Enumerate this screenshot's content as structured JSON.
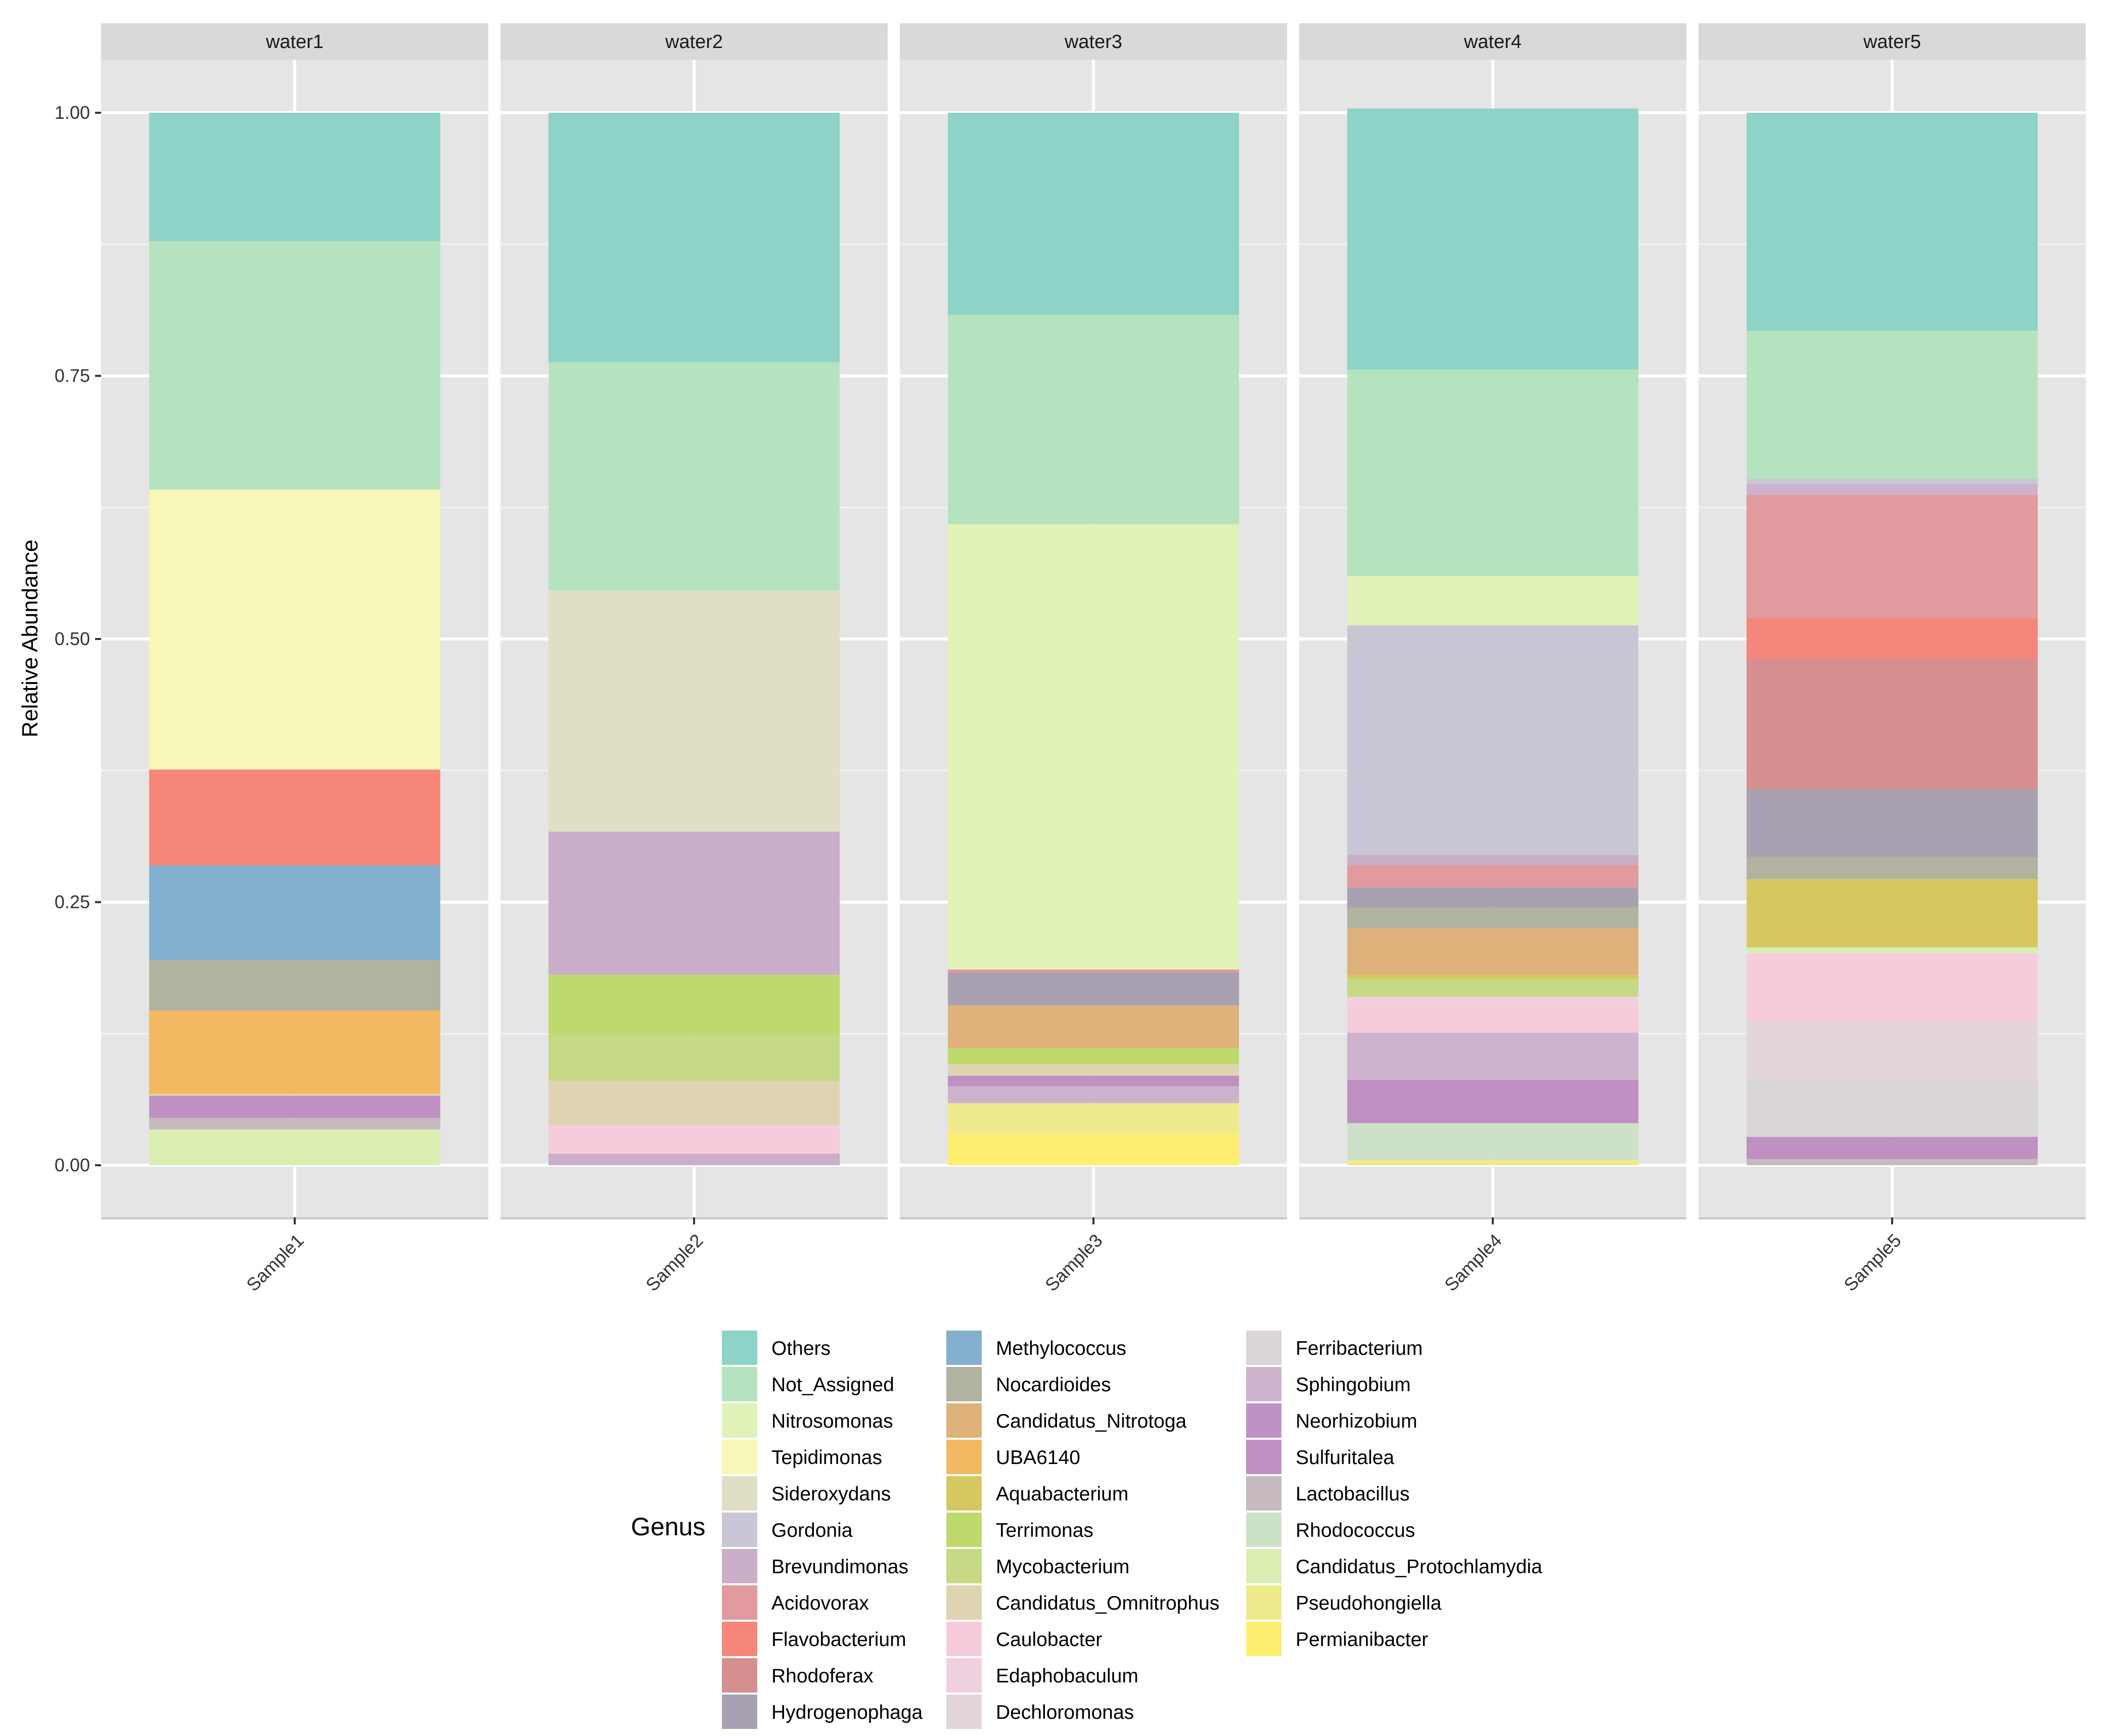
{
  "chart_data": {
    "type": "bar",
    "stacked": true,
    "facets": [
      "water1",
      "water2",
      "water3",
      "water4",
      "water5"
    ],
    "categories": [
      "Sample1",
      "Sample2",
      "Sample3",
      "Sample4",
      "Sample5"
    ],
    "ylabel": "Relative Abundance",
    "xlabel": "",
    "ylim": [
      -0.05,
      1.05
    ],
    "yticks": [
      0,
      0.25,
      0.5,
      0.75,
      1
    ],
    "ytick_labels": [
      "0.00",
      "0.25",
      "0.50",
      "0.75",
      "1.00"
    ],
    "legend": {
      "title": "Genus",
      "position": "bottom"
    },
    "genera": [
      {
        "name": "Others",
        "color": "#8dd3c7"
      },
      {
        "name": "Not_Assigned",
        "color": "#b5e3c0"
      },
      {
        "name": "Nitrosomonas",
        "color": "#e1f3b8"
      },
      {
        "name": "Tepidimonas",
        "color": "#f7f8b8"
      },
      {
        "name": "Sideroxydans",
        "color": "#e0dec5"
      },
      {
        "name": "Gordonia",
        "color": "#c8c6d4"
      },
      {
        "name": "Brevundimonas",
        "color": "#cbaec7"
      },
      {
        "name": "Acidovorax",
        "color": "#e19a9d"
      },
      {
        "name": "Flavobacterium",
        "color": "#f58679"
      },
      {
        "name": "Rhodoferax",
        "color": "#d58f8f"
      },
      {
        "name": "Hydrogenophaga",
        "color": "#a9a1b1"
      },
      {
        "name": "Methylococcus",
        "color": "#84b0d0"
      },
      {
        "name": "Nocardioides",
        "color": "#b1b2a0"
      },
      {
        "name": "Candidatus_Nitrotoga",
        "color": "#dfb17b"
      },
      {
        "name": "UBA6140",
        "color": "#f3b862"
      },
      {
        "name": "Aquabacterium",
        "color": "#d6c861"
      },
      {
        "name": "Terrimonas",
        "color": "#bfda6c"
      },
      {
        "name": "Mycobacterium",
        "color": "#c6d985"
      },
      {
        "name": "Candidatus_Omnitrophus",
        "color": "#dfd4b2"
      },
      {
        "name": "Caulobacter",
        "color": "#f6cbdc"
      },
      {
        "name": "Edaphobaculum",
        "color": "#efd0df"
      },
      {
        "name": "Dechloromonas",
        "color": "#e2d5db"
      },
      {
        "name": "Ferribacterium",
        "color": "#d9d5d8"
      },
      {
        "name": "Sphingobium",
        "color": "#cdb2ce"
      },
      {
        "name": "Neorhizobium",
        "color": "#c092c3"
      },
      {
        "name": "Sulfuritalea",
        "color": "#bf90c1"
      },
      {
        "name": "Lactobacillus",
        "color": "#c6babe"
      },
      {
        "name": "Rhodococcus",
        "color": "#cde1c9"
      },
      {
        "name": "Candidatus_Protochlamydia",
        "color": "#daeeb4"
      },
      {
        "name": "Pseudohongiella",
        "color": "#eeea8c"
      },
      {
        "name": "Permianibacter",
        "color": "#ffed6f"
      }
    ],
    "series": [
      {
        "facet": "water1",
        "sample": "Sample1",
        "segments": [
          {
            "genus": "Candidatus_Protochlamydia",
            "value": 0.034
          },
          {
            "genus": "Lactobacillus",
            "value": 0.011
          },
          {
            "genus": "Sulfuritalea",
            "value": 0.021
          },
          {
            "genus": "Candidatus_Omnitrophus",
            "value": 0.002
          },
          {
            "genus": "UBA6140",
            "value": 0.079
          },
          {
            "genus": "Nocardioides",
            "value": 0.048
          },
          {
            "genus": "Methylococcus",
            "value": 0.09
          },
          {
            "genus": "Flavobacterium",
            "value": 0.091
          },
          {
            "genus": "Tepidimonas",
            "value": 0.266
          },
          {
            "genus": "Not_Assigned",
            "value": 0.236
          },
          {
            "genus": "Others",
            "value": 0.122
          }
        ]
      },
      {
        "facet": "water2",
        "sample": "Sample2",
        "segments": [
          {
            "genus": "Brevundimonas",
            "value": 0.011
          },
          {
            "genus": "Caulobacter",
            "value": 0.027
          },
          {
            "genus": "Candidatus_Omnitrophus",
            "value": 0.042
          },
          {
            "genus": "Mycobacterium",
            "value": 0.045
          },
          {
            "genus": "Terrimonas",
            "value": 0.056
          },
          {
            "genus": "Brevundimonas",
            "value": 0.136
          },
          {
            "genus": "Sideroxydans",
            "value": 0.229
          },
          {
            "genus": "Not_Assigned",
            "value": 0.217
          },
          {
            "genus": "Others",
            "value": 0.237
          }
        ]
      },
      {
        "facet": "water3",
        "sample": "Sample3",
        "segments": [
          {
            "genus": "Permianibacter",
            "value": 0.03
          },
          {
            "genus": "Pseudohongiella",
            "value": 0.029
          },
          {
            "genus": "Sphingobium",
            "value": 0.016
          },
          {
            "genus": "Sulfuritalea",
            "value": 0.01
          },
          {
            "genus": "Candidatus_Omnitrophus",
            "value": 0.011
          },
          {
            "genus": "Terrimonas",
            "value": 0.015
          },
          {
            "genus": "Candidatus_Nitrotoga",
            "value": 0.041
          },
          {
            "genus": "Hydrogenophaga",
            "value": 0.031
          },
          {
            "genus": "Acidovorax",
            "value": 0.003
          },
          {
            "genus": "Nitrosomonas",
            "value": 0.423
          },
          {
            "genus": "Not_Assigned",
            "value": 0.199
          },
          {
            "genus": "Others",
            "value": 0.192
          }
        ]
      },
      {
        "facet": "water4",
        "sample": "Sample4",
        "segments": [
          {
            "genus": "Pseudohongiella",
            "value": 0.005
          },
          {
            "genus": "Rhodococcus",
            "value": 0.035
          },
          {
            "genus": "Sulfuritalea",
            "value": 0.041
          },
          {
            "genus": "Sphingobium",
            "value": 0.045
          },
          {
            "genus": "Caulobacter",
            "value": 0.027
          },
          {
            "genus": "Edaphobaculum",
            "value": 0.007
          },
          {
            "genus": "Mycobacterium",
            "value": 0.017
          },
          {
            "genus": "Aquabacterium",
            "value": 0.004
          },
          {
            "genus": "Candidatus_Nitrotoga",
            "value": 0.044
          },
          {
            "genus": "Nocardioides",
            "value": 0.02
          },
          {
            "genus": "Hydrogenophaga",
            "value": 0.019
          },
          {
            "genus": "Acidovorax",
            "value": 0.021
          },
          {
            "genus": "Brevundimonas",
            "value": 0.01
          },
          {
            "genus": "Gordonia",
            "value": 0.218
          },
          {
            "genus": "Nitrosomonas",
            "value": 0.047
          },
          {
            "genus": "Not_Assigned",
            "value": 0.196
          },
          {
            "genus": "Others",
            "value": 0.248
          }
        ]
      },
      {
        "facet": "water5",
        "sample": "Sample5",
        "segments": [
          {
            "genus": "Lactobacillus",
            "value": 0.006
          },
          {
            "genus": "Sulfuritalea",
            "value": 0.021
          },
          {
            "genus": "Ferribacterium",
            "value": 0.055
          },
          {
            "genus": "Dechloromonas",
            "value": 0.055
          },
          {
            "genus": "Caulobacter",
            "value": 0.064
          },
          {
            "genus": "Candidatus_Protochlamydia",
            "value": 0.006
          },
          {
            "genus": "Aquabacterium",
            "value": 0.065
          },
          {
            "genus": "Nocardioides",
            "value": 0.021
          },
          {
            "genus": "Hydrogenophaga",
            "value": 0.064
          },
          {
            "genus": "Rhodoferax",
            "value": 0.124
          },
          {
            "genus": "Flavobacterium",
            "value": 0.039
          },
          {
            "genus": "Acidovorax",
            "value": 0.117
          },
          {
            "genus": "Sphingobium",
            "value": 0.01
          },
          {
            "genus": "Gordonia",
            "value": 0.005
          },
          {
            "genus": "Not_Assigned",
            "value": 0.141
          },
          {
            "genus": "Others",
            "value": 0.207
          }
        ]
      }
    ]
  }
}
